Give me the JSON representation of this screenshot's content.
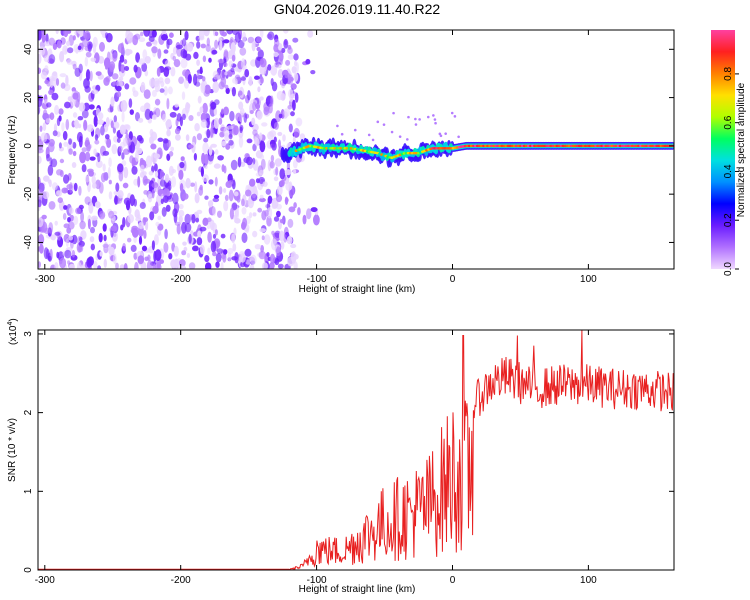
{
  "figure": {
    "title": "GN04.2026.019.11.40.R22"
  },
  "chart_data": [
    {
      "type": "heatmap",
      "title": "",
      "xlabel": "Height of straight line (km)",
      "ylabel": "Frequency (Hz)",
      "xlim": [
        -305,
        163
      ],
      "ylim": [
        -51,
        48
      ],
      "xticks": [
        -300,
        -200,
        -100,
        0,
        100
      ],
      "yticks": [
        -40,
        -20,
        0,
        20,
        40
      ],
      "colorbar": {
        "label": "Normalized spectral amplitude",
        "range": [
          0.0,
          0.98
        ],
        "ticks": [
          0.0,
          0.2,
          0.4,
          0.6,
          0.8
        ],
        "colormap": [
          "#f0d8ff",
          "#b070ff",
          "#6a1cff",
          "#0000ff",
          "#0090ff",
          "#00e0e0",
          "#00ff60",
          "#b0ff00",
          "#ffe000",
          "#ff8000",
          "#ff2020",
          "#ff40a0"
        ]
      },
      "regions": [
        {
          "name": "noise",
          "x": [
            -305,
            -115
          ],
          "frequency": [
            -51,
            48
          ],
          "amplitude": [
            0.0,
            0.2
          ]
        },
        {
          "name": "signal",
          "x": [
            -125,
            163
          ],
          "frequency_center": [
            -5,
            2
          ],
          "amplitude": [
            0.2,
            0.98
          ]
        }
      ],
      "signal_track": [
        {
          "x": -125,
          "f": -4
        },
        {
          "x": -115,
          "f": -2
        },
        {
          "x": -105,
          "f": 0
        },
        {
          "x": -95,
          "f": -1
        },
        {
          "x": -85,
          "f": -1
        },
        {
          "x": -75,
          "f": -1
        },
        {
          "x": -65,
          "f": -2
        },
        {
          "x": -55,
          "f": -3
        },
        {
          "x": -45,
          "f": -5
        },
        {
          "x": -35,
          "f": -3
        },
        {
          "x": -25,
          "f": -3
        },
        {
          "x": -15,
          "f": -1
        },
        {
          "x": -5,
          "f": -1
        },
        {
          "x": 0,
          "f": -1
        },
        {
          "x": 10,
          "f": 0
        },
        {
          "x": 50,
          "f": 0
        },
        {
          "x": 100,
          "f": 0
        },
        {
          "x": 160,
          "f": 0
        }
      ]
    },
    {
      "type": "line",
      "title": "",
      "xlabel": "Height of straight line (km)",
      "ylabel": "SNR (10 * v/v)",
      "yscale_label": "(x10",
      "yscale_exp": "4",
      "xlim": [
        -305,
        163
      ],
      "ylim": [
        0,
        3.05
      ],
      "xticks": [
        -300,
        -200,
        -100,
        0,
        100
      ],
      "yticks": [
        0,
        1,
        2,
        3
      ],
      "color": "#e82020",
      "envelope": [
        {
          "x": -305,
          "y": 0.01
        },
        {
          "x": -120,
          "y": 0.01
        },
        {
          "x": -110,
          "y": 0.08
        },
        {
          "x": -100,
          "y": 0.45
        },
        {
          "x": -90,
          "y": 0.4
        },
        {
          "x": -80,
          "y": 0.4
        },
        {
          "x": -70,
          "y": 0.6
        },
        {
          "x": -60,
          "y": 0.8
        },
        {
          "x": -50,
          "y": 1.0
        },
        {
          "x": -40,
          "y": 1.1
        },
        {
          "x": -30,
          "y": 1.2
        },
        {
          "x": -20,
          "y": 1.3
        },
        {
          "x": -10,
          "y": 1.6
        },
        {
          "x": 0,
          "y": 2.0
        },
        {
          "x": 10,
          "y": 2.0
        },
        {
          "x": 20,
          "y": 2.3
        },
        {
          "x": 30,
          "y": 2.5
        },
        {
          "x": 40,
          "y": 2.55
        },
        {
          "x": 60,
          "y": 2.4
        },
        {
          "x": 80,
          "y": 2.45
        },
        {
          "x": 100,
          "y": 2.45
        },
        {
          "x": 120,
          "y": 2.4
        },
        {
          "x": 140,
          "y": 2.4
        },
        {
          "x": 163,
          "y": 2.35
        }
      ],
      "peak_points": [
        {
          "x": 8,
          "y": 2.98
        },
        {
          "x": 48,
          "y": 2.98
        },
        {
          "x": 95,
          "y": 3.05
        },
        {
          "x": 60,
          "y": 2.85
        }
      ]
    }
  ]
}
